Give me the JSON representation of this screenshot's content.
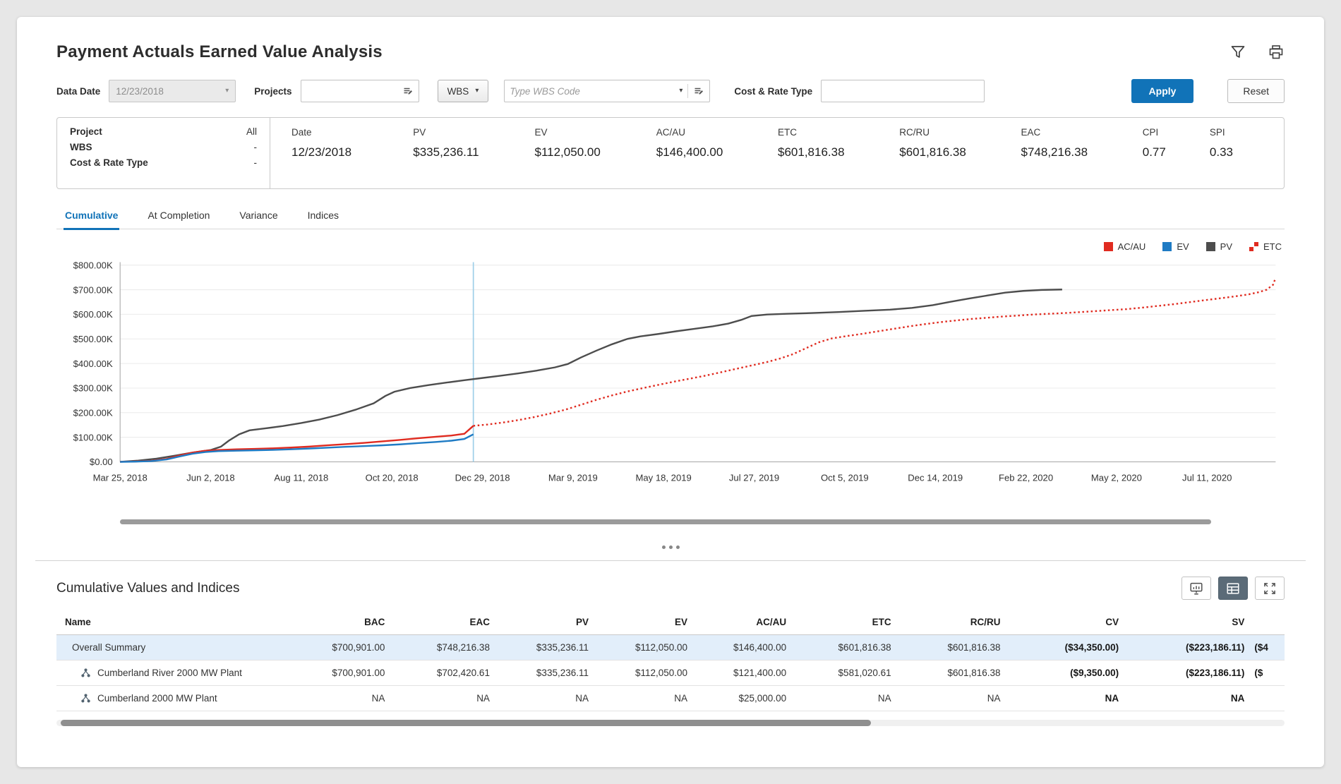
{
  "header": {
    "title": "Payment Actuals Earned Value Analysis"
  },
  "icons": {
    "chevron_down": "▾",
    "filter-icon": "funnel outline",
    "print-icon": "printer outline",
    "picker-icon": "list picker",
    "chart-icon": "bar chart board",
    "table-icon": "data grid",
    "expand-icon": "fullscreen corner arrows",
    "hierarchy-icon": "three linked nodes",
    "splitter-handle-icon": "three dots"
  },
  "filters": {
    "data_date_label": "Data Date",
    "data_date_value": "12/23/2018",
    "projects_label": "Projects",
    "projects_value": "",
    "wbs_button_label": "WBS",
    "wbs_code_placeholder": "Type WBS Code",
    "cost_rate_label": "Cost & Rate Type",
    "cost_rate_value": "",
    "apply_label": "Apply",
    "reset_label": "Reset"
  },
  "summary": {
    "left_rows": [
      {
        "label": "Project",
        "value": "All"
      },
      {
        "label": "WBS",
        "value": "-"
      },
      {
        "label": "Cost & Rate Type",
        "value": "-"
      }
    ],
    "metrics": [
      {
        "label": "Date",
        "value": "12/23/2018"
      },
      {
        "label": "PV",
        "value": "$335,236.11"
      },
      {
        "label": "EV",
        "value": "$112,050.00"
      },
      {
        "label": "AC/AU",
        "value": "$146,400.00"
      },
      {
        "label": "ETC",
        "value": "$601,816.38"
      },
      {
        "label": "RC/RU",
        "value": "$601,816.38"
      },
      {
        "label": "EAC",
        "value": "$748,216.38"
      },
      {
        "label": "CPI",
        "value": "0.77"
      },
      {
        "label": "SPI",
        "value": "0.33"
      }
    ]
  },
  "tabs": [
    {
      "label": "Cumulative",
      "active": true
    },
    {
      "label": "At Completion",
      "active": false
    },
    {
      "label": "Variance",
      "active": false
    },
    {
      "label": "Indices",
      "active": false
    }
  ],
  "chart_data": {
    "type": "line",
    "title": "Cumulative earned value curves",
    "x_unit": "days since Mar 25, 2018",
    "xlim": [
      0,
      893
    ],
    "ylim": [
      0,
      800000
    ],
    "grid": true,
    "legend_position": "top-right",
    "data_date_x": 273,
    "data_date_label": "12/23/2018",
    "yticks": [
      {
        "value": 0,
        "label": "$0.00"
      },
      {
        "value": 100000,
        "label": "$100.00K"
      },
      {
        "value": 200000,
        "label": "$200.00K"
      },
      {
        "value": 300000,
        "label": "$300.00K"
      },
      {
        "value": 400000,
        "label": "$400.00K"
      },
      {
        "value": 500000,
        "label": "$500.00K"
      },
      {
        "value": 600000,
        "label": "$600.00K"
      },
      {
        "value": 700000,
        "label": "$700.00K"
      },
      {
        "value": 800000,
        "label": "$800.00K"
      }
    ],
    "xticks": [
      {
        "value": 0,
        "label": "Mar 25, 2018"
      },
      {
        "value": 70,
        "label": "Jun 2, 2018"
      },
      {
        "value": 140,
        "label": "Aug 11, 2018"
      },
      {
        "value": 210,
        "label": "Oct 20, 2018"
      },
      {
        "value": 280,
        "label": "Dec 29, 2018"
      },
      {
        "value": 350,
        "label": "Mar 9, 2019"
      },
      {
        "value": 420,
        "label": "May 18, 2019"
      },
      {
        "value": 490,
        "label": "Jul 27, 2019"
      },
      {
        "value": 560,
        "label": "Oct 5, 2019"
      },
      {
        "value": 630,
        "label": "Dec 14, 2019"
      },
      {
        "value": 700,
        "label": "Feb 22, 2020"
      },
      {
        "value": 770,
        "label": "May 2, 2020"
      },
      {
        "value": 840,
        "label": "Jul 11, 2020"
      }
    ],
    "series": [
      {
        "name": "AC/AU",
        "color": "#e02b20",
        "style": "solid",
        "z": 3,
        "points": [
          [
            0,
            0
          ],
          [
            12,
            1500
          ],
          [
            24,
            4000
          ],
          [
            36,
            12000
          ],
          [
            46,
            26000
          ],
          [
            56,
            38000
          ],
          [
            66,
            45000
          ],
          [
            76,
            48000
          ],
          [
            90,
            51000
          ],
          [
            104,
            53000
          ],
          [
            118,
            55000
          ],
          [
            132,
            58000
          ],
          [
            146,
            62000
          ],
          [
            160,
            67000
          ],
          [
            174,
            72000
          ],
          [
            188,
            77000
          ],
          [
            202,
            83000
          ],
          [
            216,
            89000
          ],
          [
            230,
            96000
          ],
          [
            244,
            102000
          ],
          [
            256,
            107000
          ],
          [
            266,
            114000
          ],
          [
            273,
            146400
          ]
        ]
      },
      {
        "name": "EV",
        "color": "#1f7bc4",
        "style": "solid",
        "z": 4,
        "points": [
          [
            0,
            0
          ],
          [
            12,
            1000
          ],
          [
            24,
            3000
          ],
          [
            36,
            10000
          ],
          [
            46,
            22000
          ],
          [
            56,
            33000
          ],
          [
            66,
            40000
          ],
          [
            76,
            43500
          ],
          [
            90,
            45500
          ],
          [
            104,
            47000
          ],
          [
            118,
            48500
          ],
          [
            132,
            51000
          ],
          [
            146,
            54000
          ],
          [
            160,
            57500
          ],
          [
            174,
            61000
          ],
          [
            188,
            64000
          ],
          [
            202,
            67000
          ],
          [
            216,
            71000
          ],
          [
            230,
            76000
          ],
          [
            244,
            81000
          ],
          [
            256,
            86000
          ],
          [
            266,
            93000
          ],
          [
            273,
            112050
          ]
        ]
      },
      {
        "name": "PV",
        "color": "#4d4d4d",
        "style": "solid",
        "z": 1,
        "points": [
          [
            0,
            0
          ],
          [
            14,
            5000
          ],
          [
            28,
            13000
          ],
          [
            42,
            25000
          ],
          [
            56,
            38000
          ],
          [
            70,
            48000
          ],
          [
            78,
            62000
          ],
          [
            84,
            86000
          ],
          [
            92,
            112000
          ],
          [
            100,
            128000
          ],
          [
            112,
            136000
          ],
          [
            126,
            146000
          ],
          [
            140,
            158000
          ],
          [
            154,
            172000
          ],
          [
            168,
            190000
          ],
          [
            182,
            212000
          ],
          [
            196,
            238000
          ],
          [
            205,
            268000
          ],
          [
            212,
            285000
          ],
          [
            224,
            300000
          ],
          [
            238,
            312000
          ],
          [
            252,
            322000
          ],
          [
            266,
            332000
          ],
          [
            280,
            341000
          ],
          [
            294,
            350000
          ],
          [
            308,
            360000
          ],
          [
            322,
            371000
          ],
          [
            336,
            384000
          ],
          [
            346,
            398000
          ],
          [
            356,
            424000
          ],
          [
            368,
            452000
          ],
          [
            380,
            478000
          ],
          [
            392,
            500000
          ],
          [
            402,
            510000
          ],
          [
            416,
            520000
          ],
          [
            430,
            531000
          ],
          [
            444,
            541000
          ],
          [
            458,
            551000
          ],
          [
            470,
            562000
          ],
          [
            480,
            577000
          ],
          [
            488,
            593000
          ],
          [
            500,
            599000
          ],
          [
            515,
            602000
          ],
          [
            535,
            605000
          ],
          [
            555,
            609000
          ],
          [
            575,
            614000
          ],
          [
            595,
            619000
          ],
          [
            612,
            626000
          ],
          [
            628,
            637000
          ],
          [
            642,
            651000
          ],
          [
            656,
            664000
          ],
          [
            670,
            676000
          ],
          [
            684,
            688000
          ],
          [
            698,
            695000
          ],
          [
            712,
            699000
          ],
          [
            728,
            700901
          ]
        ]
      },
      {
        "name": "ETC",
        "color": "#e02b20",
        "style": "dotted",
        "z": 2,
        "points": [
          [
            273,
            146400
          ],
          [
            284,
            152000
          ],
          [
            296,
            160000
          ],
          [
            308,
            170000
          ],
          [
            320,
            182000
          ],
          [
            332,
            196000
          ],
          [
            344,
            212000
          ],
          [
            356,
            232000
          ],
          [
            368,
            252000
          ],
          [
            380,
            270000
          ],
          [
            392,
            286000
          ],
          [
            404,
            300000
          ],
          [
            416,
            313000
          ],
          [
            428,
            326000
          ],
          [
            440,
            338000
          ],
          [
            452,
            350000
          ],
          [
            464,
            364000
          ],
          [
            476,
            378000
          ],
          [
            488,
            392000
          ],
          [
            500,
            406000
          ],
          [
            510,
            420000
          ],
          [
            520,
            438000
          ],
          [
            530,
            462000
          ],
          [
            540,
            486000
          ],
          [
            550,
            502000
          ],
          [
            562,
            512000
          ],
          [
            574,
            521000
          ],
          [
            586,
            531000
          ],
          [
            598,
            541000
          ],
          [
            610,
            551000
          ],
          [
            622,
            560000
          ],
          [
            634,
            568000
          ],
          [
            646,
            575000
          ],
          [
            658,
            581000
          ],
          [
            670,
            586000
          ],
          [
            682,
            591000
          ],
          [
            694,
            595000
          ],
          [
            706,
            599000
          ],
          [
            718,
            602000
          ],
          [
            730,
            605000
          ],
          [
            742,
            609000
          ],
          [
            754,
            613000
          ],
          [
            766,
            617000
          ],
          [
            778,
            621000
          ],
          [
            790,
            627000
          ],
          [
            802,
            634000
          ],
          [
            814,
            641000
          ],
          [
            826,
            649000
          ],
          [
            838,
            657000
          ],
          [
            850,
            665000
          ],
          [
            862,
            673000
          ],
          [
            872,
            681000
          ],
          [
            880,
            690000
          ],
          [
            886,
            700000
          ],
          [
            891,
            720000
          ],
          [
            893,
            748216
          ]
        ]
      }
    ]
  },
  "table": {
    "title": "Cumulative Values and Indices",
    "columns": [
      {
        "label": "Name",
        "align": "left",
        "bold_values": false
      },
      {
        "label": "BAC",
        "align": "right",
        "bold_values": false
      },
      {
        "label": "EAC",
        "align": "right",
        "bold_values": false
      },
      {
        "label": "PV",
        "align": "right",
        "bold_values": false
      },
      {
        "label": "EV",
        "align": "right",
        "bold_values": false
      },
      {
        "label": "AC/AU",
        "align": "right",
        "bold_values": false
      },
      {
        "label": "ETC",
        "align": "right",
        "bold_values": false
      },
      {
        "label": "RC/RU",
        "align": "right",
        "bold_values": false
      },
      {
        "label": "CV",
        "align": "right",
        "bold_values": true
      },
      {
        "label": "SV",
        "align": "right",
        "bold_values": true
      },
      {
        "label": "",
        "align": "left",
        "bold_values": true
      }
    ],
    "rows": [
      {
        "name": "Overall Summary",
        "has_icon": false,
        "selected": true,
        "values": [
          "$700,901.00",
          "$748,216.38",
          "$335,236.11",
          "$112,050.00",
          "$146,400.00",
          "$601,816.38",
          "$601,816.38",
          "($34,350.00)",
          "($223,186.11)",
          "($4"
        ]
      },
      {
        "name": "Cumberland River 2000 MW Plant",
        "has_icon": true,
        "selected": false,
        "values": [
          "$700,901.00",
          "$702,420.61",
          "$335,236.11",
          "$112,050.00",
          "$121,400.00",
          "$581,020.61",
          "$601,816.38",
          "($9,350.00)",
          "($223,186.11)",
          "($"
        ]
      },
      {
        "name": "Cumberland 2000 MW Plant",
        "has_icon": true,
        "selected": false,
        "values": [
          "NA",
          "NA",
          "NA",
          "NA",
          "$25,000.00",
          "NA",
          "NA",
          "NA",
          "NA",
          ""
        ]
      }
    ]
  }
}
